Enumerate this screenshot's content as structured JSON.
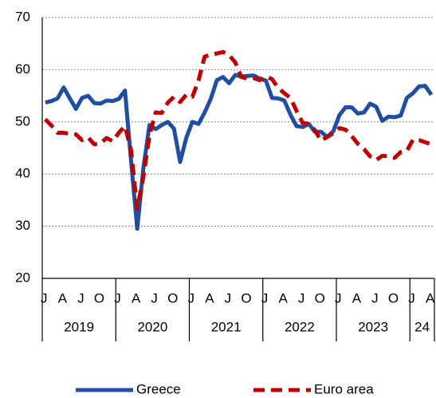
{
  "chart_data": {
    "type": "line",
    "categories": [
      "J",
      null,
      null,
      "A",
      null,
      null,
      "J",
      null,
      null,
      "O",
      null,
      null,
      "J",
      null,
      null,
      "A",
      null,
      null,
      "J",
      null,
      null,
      "O",
      null,
      null,
      "J",
      null,
      null,
      "A",
      null,
      null,
      "J",
      null,
      null,
      "O",
      null,
      null,
      "J",
      null,
      null,
      "A",
      null,
      null,
      "J",
      null,
      null,
      "O",
      null,
      null,
      "J",
      null,
      null,
      "A",
      null,
      null,
      "J",
      null,
      null,
      "O",
      null,
      null,
      "J",
      null,
      null,
      "A"
    ],
    "years": [
      "2019",
      "2020",
      "2021",
      "2022",
      "2023",
      "24"
    ],
    "series": [
      {
        "name": "Greece",
        "color": "#1f4ea3",
        "dashed": false,
        "values": [
          53.7,
          54.0,
          54.5,
          56.6,
          54.5,
          52.5,
          54.6,
          55.0,
          53.6,
          53.5,
          54.1,
          54.0,
          54.4,
          56.0,
          42.5,
          29.5,
          41.1,
          49.4,
          48.6,
          49.4,
          50.0,
          48.7,
          42.3,
          46.9,
          50.0,
          49.6,
          51.8,
          54.4,
          58.0,
          58.6,
          57.4,
          59.0,
          58.7,
          58.8,
          58.9,
          58.3,
          57.9,
          54.6,
          54.5,
          54.1,
          51.4,
          49.2,
          49.0,
          49.6,
          48.1,
          48.1,
          47.1,
          48.2,
          51.3,
          52.8,
          52.8,
          51.6,
          51.8,
          53.5,
          52.9,
          50.2,
          51.0,
          50.9,
          51.2,
          54.6,
          55.5,
          56.8,
          56.9,
          55.2
        ]
      },
      {
        "name": "Euro area",
        "color": "#c00000",
        "dashed": true,
        "values": [
          50.5,
          49.3,
          47.9,
          47.9,
          47.7,
          47.6,
          46.5,
          47.0,
          45.7,
          45.9,
          46.9,
          46.3,
          47.9,
          49.2,
          44.5,
          33.4,
          39.4,
          47.4,
          51.8,
          51.7,
          53.7,
          54.8,
          53.8,
          55.2,
          54.8,
          57.9,
          62.5,
          62.9,
          63.1,
          63.4,
          62.8,
          61.4,
          58.6,
          58.3,
          58.4,
          58.0,
          58.7,
          58.2,
          56.5,
          55.5,
          54.6,
          52.1,
          49.8,
          49.6,
          48.4,
          46.4,
          47.1,
          47.8,
          48.8,
          48.5,
          47.3,
          45.8,
          44.8,
          43.4,
          42.7,
          43.5,
          43.4,
          43.1,
          44.2,
          44.4,
          46.6,
          46.5,
          46.1,
          45.7
        ]
      }
    ],
    "ylim": [
      20,
      70
    ],
    "yticks": [
      20,
      30,
      40,
      50,
      60,
      70
    ],
    "grid": true,
    "legend": "bottom"
  }
}
